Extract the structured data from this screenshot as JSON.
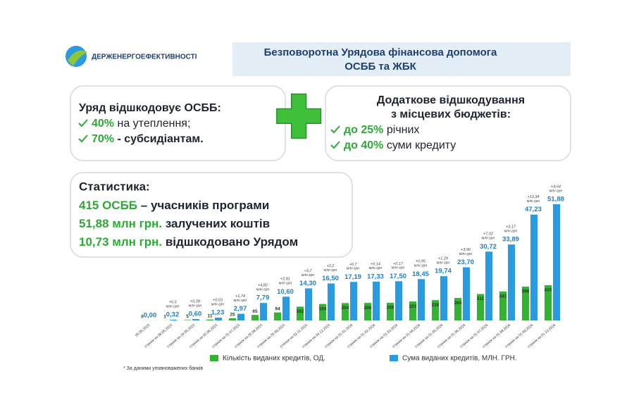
{
  "header": {
    "logo": "ДЕРЖЕНЕРГОЕФЕКТИВНОСТІ",
    "title_lines": [
      "Безповоротна Урядова фінансова допомога",
      "ОСББ та ЖБК"
    ]
  },
  "box_government": {
    "title": "Уряд відшкодовує ОСББ:",
    "items": [
      {
        "highlight": "40%",
        "text": "на утеплення;"
      },
      {
        "highlight": "70%",
        "text": "- субсидіантам."
      }
    ]
  },
  "box_local": {
    "title_lines": [
      "Додаткове відшкодування",
      "з місцевих бюджетів:"
    ],
    "items": [
      {
        "highlight": "до 25%",
        "text": "річних"
      },
      {
        "highlight": "до 40%",
        "text": "суми кредиту"
      }
    ]
  },
  "statistics": {
    "title": "Статистика:",
    "items": [
      {
        "highlight": "415 ОСББ",
        "text": "– учасників програми"
      },
      {
        "highlight": "51,88 млн грн.",
        "text": "залучених коштів"
      },
      {
        "highlight": "10,73 млн грн.",
        "text": "відшкодовано Урядом"
      }
    ]
  },
  "chart_data": {
    "type": "bar",
    "categories": [
      "05.05.2015",
      "станом на 08.05.2015",
      "станом на 19.05.2015",
      "станом на 02.06.2015",
      "станом на 01.07.2015",
      "станом на 26.08.2015",
      "станом на 26.09.2015",
      "станом на 02.11.2015",
      "станом на 04.12.2015",
      "станом на 01.01.2016",
      "станом на 01.02.2016",
      "станом на 01.03.2016",
      "станом на 01.04.2016",
      "станом на 01.05.2016",
      "станом на 01.06.2016",
      "станом на 01.07.2016",
      "станом на 01.08.2016",
      "станом на 01.09.2016",
      "станом на 01.10.2016"
    ],
    "series": [
      {
        "name": "Кількість виданих кредитів, ОД.",
        "color": "#34b233",
        "axis": "y2",
        "values": [
          0,
          1,
          5,
          11,
          25,
          65,
          94,
          162,
          194,
          204,
          206,
          208,
          223,
          239,
          264,
          311,
          341,
          398,
          415
        ]
      },
      {
        "name": "Сума виданих кредитів, МЛН. ГРН.",
        "color": "#2a9be0",
        "values": [
          0,
          0.32,
          0.6,
          1.23,
          2.97,
          7.79,
          10.6,
          14.3,
          16.5,
          17.19,
          17.33,
          17.5,
          18.45,
          19.74,
          23.7,
          30.72,
          33.89,
          47.23,
          51.88
        ],
        "value_labels": [
          "0,00",
          "0,32",
          "0,60",
          "1,23",
          "2,97",
          "7,79",
          "10,60",
          "14,30",
          "16,50",
          "17,19",
          "17,33",
          "17,50",
          "18,45",
          "19,74",
          "23,70",
          "30,72",
          "33,89",
          "47,23",
          "51,88"
        ]
      }
    ],
    "annotations": [
      {
        "change": "+0,3",
        "unit": "млн грн"
      },
      {
        "change": "+0,28",
        "unit": "млн грн"
      },
      {
        "change": "+0,63",
        "unit": "млн грн"
      },
      {
        "change": "+1,74",
        "unit": "млн грн"
      },
      {
        "change": "+4,82",
        "unit": "млн грн"
      },
      {
        "change": "+2,81",
        "unit": "млн грн"
      },
      {
        "change": "+3,7",
        "unit": "млн грн"
      },
      {
        "change": "+2,2",
        "unit": "млн грн"
      },
      {
        "change": "+0,7",
        "unit": "млн грн"
      },
      {
        "change": "+0,14",
        "unit": "млн грн"
      },
      {
        "change": "+0,17",
        "unit": "млн грн"
      },
      {
        "change": "+0,95",
        "unit": "млн грн"
      },
      {
        "change": "+1,29",
        "unit": "млн грн"
      },
      {
        "change": "+3,96",
        "unit": "млн грн"
      },
      {
        "change": "+7,02",
        "unit": "млн грн"
      },
      {
        "change": "+3,17",
        "unit": "млн грн"
      },
      {
        "change": "+13,34",
        "unit": "млн грн"
      },
      {
        "change": "+4,64",
        "unit": "млн грн"
      }
    ],
    "ylim": [
      0,
      55
    ],
    "y2lim": [
      0,
      1450
    ],
    "grid": false,
    "legend": "bottom"
  },
  "footnote": "* За даними уповноважених банків"
}
